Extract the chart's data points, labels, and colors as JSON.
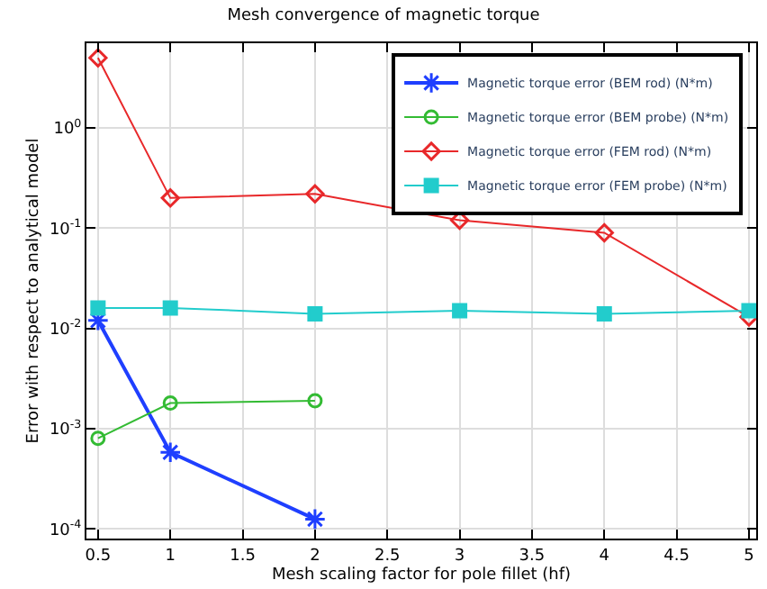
{
  "chart_data": {
    "type": "line",
    "title": "Mesh convergence of magnetic torque",
    "xlabel": "Mesh scaling factor for pole fillet (hf)",
    "ylabel": "Error with respect to analytical model",
    "log": "y",
    "grid": true,
    "legend": "top right",
    "xlim": [
      0.42,
      5.05
    ],
    "xticks": [
      0.5,
      1,
      1.5,
      2,
      2.5,
      3,
      3.5,
      4,
      4.5,
      5
    ],
    "ylim": [
      8e-05,
      7
    ],
    "yticks": [
      {
        "value": 0.0001,
        "label": "10$^{-4}$"
      },
      {
        "value": 0.001,
        "label": "10$^{-3}$"
      },
      {
        "value": 0.01,
        "label": "10$^{-2}$"
      },
      {
        "value": 0.1,
        "label": "10$^{-1}$"
      },
      {
        "value": 1,
        "label": "10$^{0}$"
      }
    ],
    "series": [
      {
        "name": "Magnetic torque error (BEM rod) (N*m)",
        "color": "#1f3fff",
        "marker": "cross",
        "x": [
          0.5,
          1,
          2
        ],
        "values": [
          0.012,
          0.00058,
          0.000125
        ]
      },
      {
        "name": "Magnetic torque error (BEM probe) (N*m)",
        "color": "#33bb33",
        "marker": "circle",
        "x": [
          0.5,
          1,
          2
        ],
        "values": [
          0.0008,
          0.0018,
          0.0019
        ]
      },
      {
        "name": "Magnetic torque error (FEM rod) (N*m)",
        "color": "#e8282a",
        "marker": "diamond",
        "x": [
          0.5,
          1,
          2,
          3,
          4,
          5
        ],
        "values": [
          5,
          0.2,
          0.22,
          0.12,
          0.09,
          0.013
        ]
      },
      {
        "name": "Magnetic torque error (FEM probe) (N*m)",
        "color": "#22cccc",
        "marker": "square",
        "x": [
          0.5,
          1,
          2,
          3,
          4,
          5
        ],
        "values": [
          0.016,
          0.016,
          0.014,
          0.015,
          0.014,
          0.015
        ]
      }
    ]
  }
}
